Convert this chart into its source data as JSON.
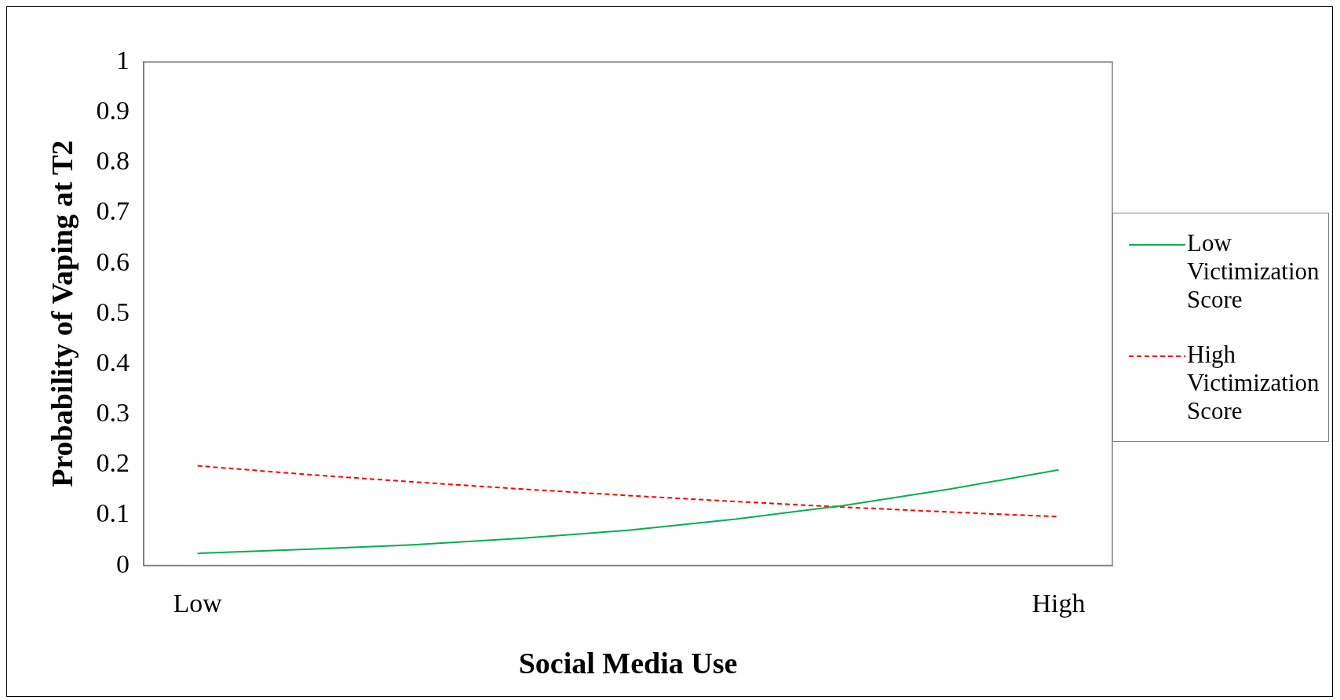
{
  "chart_data": {
    "type": "line",
    "xlabel": "Social Media Use",
    "ylabel": "Probability of Vaping at T2",
    "categories": [
      "Low",
      null,
      null,
      null,
      null,
      null,
      null,
      null,
      "High"
    ],
    "series": [
      {
        "name": "Low Victimization Score",
        "color": "#00b050",
        "line_style": "solid",
        "values": [
          0.024,
          0.032,
          0.041,
          0.054,
          0.07,
          0.092,
          0.119,
          0.152,
          0.19
        ]
      },
      {
        "name": "High Victimization Score",
        "color": "#ff0000",
        "line_style": "dashed",
        "values": [
          0.198,
          0.181,
          0.166,
          0.152,
          0.139,
          0.127,
          0.116,
          0.106,
          0.097
        ]
      }
    ],
    "ylim": [
      0,
      1
    ],
    "yticks": [
      0,
      0.1,
      0.2,
      0.3,
      0.4,
      0.5,
      0.6,
      0.7,
      0.8,
      0.9,
      1
    ],
    "grid": false,
    "legend": "right",
    "marker": "none"
  }
}
